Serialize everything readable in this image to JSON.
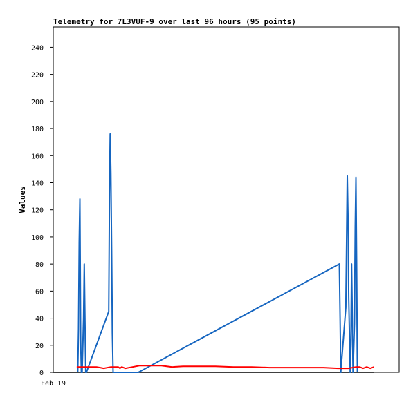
{
  "chart_data": {
    "type": "line",
    "title": "Telemetry for 7L3VUF-9 over last 96 hours (95 points)",
    "ylabel": "Values",
    "xlabel": "",
    "x_tick_labels": [
      "Feb 19"
    ],
    "ylim": [
      0,
      255
    ],
    "y_ticks": [
      0,
      20,
      40,
      60,
      80,
      100,
      120,
      140,
      160,
      180,
      200,
      220,
      240
    ],
    "grid": false,
    "legend": "none",
    "xlim_hours": [
      0,
      96
    ],
    "series": [
      {
        "color": "#1565c0",
        "x": [
          6.8,
          7.0,
          7.2,
          7.4,
          7.6,
          7.8,
          8.0,
          8.4,
          8.6,
          8.8,
          9.0,
          9.2,
          15.4,
          15.6,
          15.8,
          16.0,
          16.2,
          16.4,
          16.6,
          23.6,
          79.4,
          79.6,
          79.8,
          81.2,
          81.4,
          81.6,
          81.8,
          82.0,
          82.4,
          82.6,
          82.8,
          83.0,
          83.2,
          83.6,
          83.8,
          84.0,
          84.2,
          84.4
        ],
        "y": [
          0,
          32,
          96,
          128,
          24,
          0,
          0,
          40,
          80,
          40,
          0,
          0,
          45,
          132,
          176,
          147,
          90,
          29,
          0,
          0,
          80,
          40,
          0,
          48,
          97,
          145,
          116,
          55,
          0,
          20,
          80,
          40,
          0,
          36,
          108,
          144,
          80,
          0
        ]
      },
      {
        "color": "#ff0000",
        "x": [
          6.5,
          10,
          12,
          13,
          14,
          16,
          18,
          18.5,
          19,
          20,
          22,
          24,
          26,
          28,
          30,
          33,
          36,
          40,
          45,
          50,
          55,
          60,
          65,
          70,
          75,
          79,
          82,
          84,
          85,
          86,
          87,
          88,
          89
        ],
        "y": [
          4,
          4,
          4,
          3.5,
          3,
          4,
          4,
          3,
          4,
          3,
          4,
          5,
          5,
          5,
          5,
          4,
          4.5,
          4.5,
          4.5,
          4,
          4,
          3.5,
          3.5,
          3.5,
          3.5,
          3,
          3,
          4,
          4,
          3,
          4,
          3,
          4
        ]
      }
    ]
  }
}
